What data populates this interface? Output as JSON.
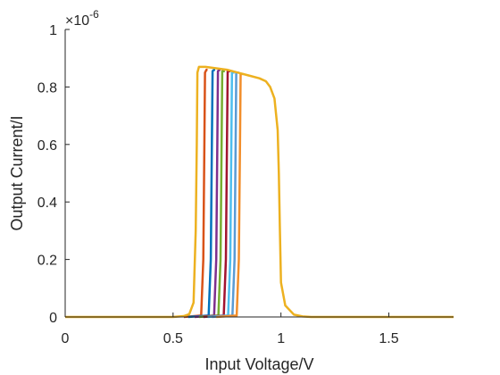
{
  "chart_data": {
    "type": "line",
    "title": "",
    "xlabel": "Input Voltage/V",
    "ylabel": "Output Current/I",
    "y_exponent_label": "×10",
    "y_exponent_power": "-6",
    "xlim": [
      0,
      1.8
    ],
    "ylim": [
      0,
      1
    ],
    "xticks": [
      0,
      0.5,
      1,
      1.5
    ],
    "xtick_labels": [
      "0",
      "0.5",
      "1",
      "1.5"
    ],
    "yticks": [
      0,
      0.2,
      0.4,
      0.6,
      0.8,
      1
    ],
    "ytick_labels": [
      "0",
      "0.2",
      "0.4",
      "0.6",
      "0.8",
      "1"
    ],
    "grid": false,
    "legend": "none",
    "series": [
      {
        "color": "#EDB120",
        "width": 2.5,
        "points": [
          [
            0,
            0
          ],
          [
            0.5,
            0
          ],
          [
            0.55,
            0.003
          ],
          [
            0.575,
            0.01
          ],
          [
            0.595,
            0.05
          ],
          [
            0.605,
            0.3
          ],
          [
            0.61,
            0.6
          ],
          [
            0.613,
            0.85
          ],
          [
            0.62,
            0.87
          ],
          [
            0.65,
            0.87
          ],
          [
            0.7,
            0.865
          ],
          [
            0.75,
            0.86
          ],
          [
            0.8,
            0.85
          ],
          [
            0.85,
            0.84
          ],
          [
            0.9,
            0.83
          ],
          [
            0.93,
            0.82
          ],
          [
            0.95,
            0.8
          ],
          [
            0.97,
            0.76
          ],
          [
            0.985,
            0.65
          ],
          [
            0.99,
            0.5
          ],
          [
            0.995,
            0.3
          ],
          [
            1.0,
            0.12
          ],
          [
            1.02,
            0.04
          ],
          [
            1.06,
            0.008
          ],
          [
            1.1,
            0.002
          ],
          [
            1.14,
            0
          ],
          [
            1.8,
            0
          ]
        ]
      },
      {
        "color": "#D95319",
        "width": 2.5,
        "points": [
          [
            0.55,
            0
          ],
          [
            0.63,
            0.005
          ],
          [
            0.64,
            0.2
          ],
          [
            0.645,
            0.6
          ],
          [
            0.648,
            0.85
          ],
          [
            0.655,
            0.86
          ],
          [
            0.66,
            0.86
          ]
        ]
      },
      {
        "color": "#0072BD",
        "width": 2.5,
        "points": [
          [
            0.57,
            0
          ],
          [
            0.665,
            0.005
          ],
          [
            0.675,
            0.2
          ],
          [
            0.68,
            0.6
          ],
          [
            0.683,
            0.855
          ],
          [
            0.69,
            0.86
          ],
          [
            0.695,
            0.86
          ]
        ]
      },
      {
        "color": "#7E2F8E",
        "width": 2.5,
        "points": [
          [
            0.6,
            0
          ],
          [
            0.69,
            0.005
          ],
          [
            0.7,
            0.2
          ],
          [
            0.705,
            0.6
          ],
          [
            0.708,
            0.855
          ],
          [
            0.715,
            0.86
          ],
          [
            0.72,
            0.86
          ]
        ]
      },
      {
        "color": "#77AC30",
        "width": 2.5,
        "points": [
          [
            0.62,
            0
          ],
          [
            0.71,
            0.005
          ],
          [
            0.72,
            0.2
          ],
          [
            0.725,
            0.6
          ],
          [
            0.728,
            0.855
          ],
          [
            0.735,
            0.855
          ],
          [
            0.74,
            0.855
          ]
        ]
      },
      {
        "color": "#A2142F",
        "width": 2.5,
        "points": [
          [
            0.64,
            0
          ],
          [
            0.735,
            0.005
          ],
          [
            0.745,
            0.2
          ],
          [
            0.75,
            0.6
          ],
          [
            0.753,
            0.855
          ],
          [
            0.76,
            0.855
          ],
          [
            0.765,
            0.855
          ]
        ]
      },
      {
        "color": "#4DBEEE",
        "width": 2.5,
        "points": [
          [
            0.66,
            0
          ],
          [
            0.755,
            0.005
          ],
          [
            0.765,
            0.2
          ],
          [
            0.77,
            0.6
          ],
          [
            0.773,
            0.85
          ],
          [
            0.78,
            0.85
          ],
          [
            0.785,
            0.85
          ]
        ]
      },
      {
        "color": "#5A9BD5",
        "width": 2.5,
        "points": [
          [
            0.68,
            0
          ],
          [
            0.775,
            0.005
          ],
          [
            0.785,
            0.2
          ],
          [
            0.79,
            0.6
          ],
          [
            0.793,
            0.85
          ],
          [
            0.8,
            0.85
          ],
          [
            0.805,
            0.85
          ]
        ]
      },
      {
        "color": "#F28E2B",
        "width": 2.5,
        "points": [
          [
            0.7,
            0
          ],
          [
            0.795,
            0.005
          ],
          [
            0.805,
            0.2
          ],
          [
            0.81,
            0.6
          ],
          [
            0.813,
            0.845
          ],
          [
            0.82,
            0.845
          ],
          [
            0.825,
            0.845
          ]
        ]
      }
    ]
  }
}
